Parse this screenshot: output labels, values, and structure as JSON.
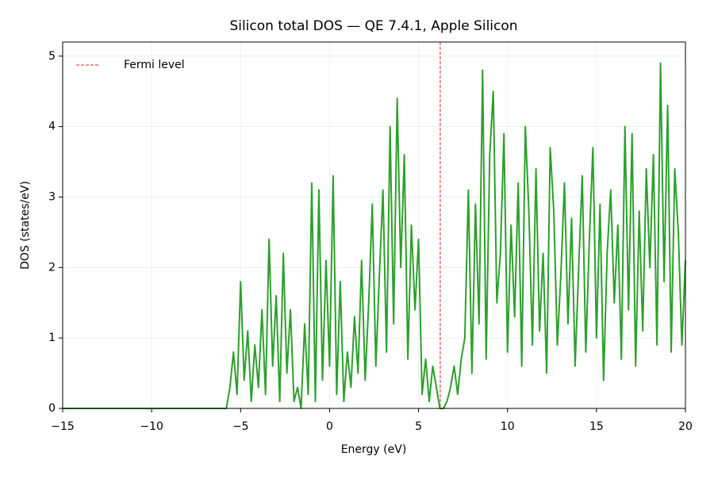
{
  "chart_data": {
    "type": "line",
    "title": "Silicon total DOS — QE 7.4.1, Apple Silicon",
    "x_label": "Energy (eV)",
    "y_label": "DOS (states/eV)",
    "xlim": [
      -15,
      20
    ],
    "ylim": [
      0,
      5.2
    ],
    "xticks": [
      {
        "value": -15,
        "label": "−15"
      },
      {
        "value": -10,
        "label": "−10"
      },
      {
        "value": -5,
        "label": "−5"
      },
      0,
      5,
      10,
      15,
      20
    ],
    "yticks": [
      0,
      1,
      2,
      3,
      4,
      5
    ],
    "grid": true,
    "legend": "upper left",
    "x": [
      -15,
      -5.8,
      -5.6,
      -5.4,
      -5.2,
      -5.0,
      -4.8,
      -4.6,
      -4.4,
      -4.2,
      -4.0,
      -3.8,
      -3.6,
      -3.4,
      -3.2,
      -3.0,
      -2.8,
      -2.6,
      -2.4,
      -2.2,
      -2.0,
      -1.8,
      -1.6,
      -1.4,
      -1.2,
      -1.0,
      -0.8,
      -0.6,
      -0.4,
      -0.2,
      0.0,
      0.2,
      0.4,
      0.6,
      0.8,
      1.0,
      1.2,
      1.4,
      1.6,
      1.8,
      2.0,
      2.2,
      2.4,
      2.6,
      2.8,
      3.0,
      3.2,
      3.4,
      3.6,
      3.8,
      4.0,
      4.2,
      4.4,
      4.6,
      4.8,
      5.0,
      5.2,
      5.4,
      5.6,
      5.8,
      6.0,
      6.2,
      6.4,
      6.6,
      6.8,
      7.0,
      7.2,
      7.4,
      7.6,
      7.8,
      8.0,
      8.2,
      8.4,
      8.6,
      8.8,
      9.0,
      9.2,
      9.4,
      9.6,
      9.8,
      10.0,
      10.2,
      10.4,
      10.6,
      10.8,
      11.0,
      11.2,
      11.4,
      11.6,
      11.8,
      12.0,
      12.2,
      12.4,
      12.6,
      12.8,
      13.0,
      13.2,
      13.4,
      13.6,
      13.8,
      14.0,
      14.2,
      14.4,
      14.6,
      14.8,
      15.0,
      15.2,
      15.4,
      15.6,
      15.8,
      16.0,
      16.2,
      16.4,
      16.6,
      16.8,
      17.0,
      17.2,
      17.4,
      17.6,
      17.8,
      18.0,
      18.2,
      18.4,
      18.6,
      18.8,
      19.0,
      19.2,
      19.4,
      19.6,
      19.8,
      20.0
    ],
    "series": [
      {
        "color": "#2ca02c",
        "values": [
          0,
          0,
          0.3,
          0.8,
          0.2,
          1.8,
          0.4,
          1.1,
          0.1,
          0.9,
          0.3,
          1.4,
          0.2,
          2.4,
          0.6,
          1.6,
          0.1,
          2.2,
          0.5,
          1.4,
          0.1,
          0.3,
          0.0,
          1.2,
          0.2,
          3.2,
          0.1,
          3.1,
          0.4,
          2.1,
          0.6,
          3.3,
          0.2,
          1.8,
          0.1,
          0.8,
          0.3,
          1.3,
          0.5,
          2.1,
          0.4,
          1.5,
          2.9,
          0.6,
          1.9,
          3.1,
          0.8,
          4.0,
          1.2,
          4.4,
          2.0,
          3.6,
          0.7,
          2.6,
          1.4,
          2.4,
          0.2,
          0.7,
          0.1,
          0.6,
          0.3,
          0.0,
          0.0,
          0.1,
          0.3,
          0.6,
          0.2,
          0.7,
          1.0,
          3.1,
          0.5,
          2.9,
          1.2,
          4.8,
          0.7,
          3.6,
          4.5,
          1.5,
          2.2,
          3.9,
          0.8,
          2.6,
          1.3,
          3.2,
          0.6,
          4.0,
          2.8,
          0.9,
          3.4,
          1.1,
          2.2,
          0.5,
          3.7,
          2.8,
          0.9,
          1.9,
          3.2,
          1.2,
          2.7,
          0.6,
          2.0,
          3.3,
          0.8,
          2.4,
          3.7,
          1.0,
          2.9,
          0.4,
          2.2,
          3.1,
          1.5,
          2.6,
          0.7,
          4.0,
          1.4,
          3.9,
          0.6,
          2.8,
          1.1,
          3.4,
          2.0,
          3.6,
          0.9,
          4.9,
          1.8,
          4.3,
          0.8,
          3.4,
          2.5,
          0.9,
          2.1
        ]
      }
    ],
    "vlines": [
      {
        "name": "Fermi level",
        "x": 6.22,
        "color": "#d62728"
      }
    ]
  }
}
